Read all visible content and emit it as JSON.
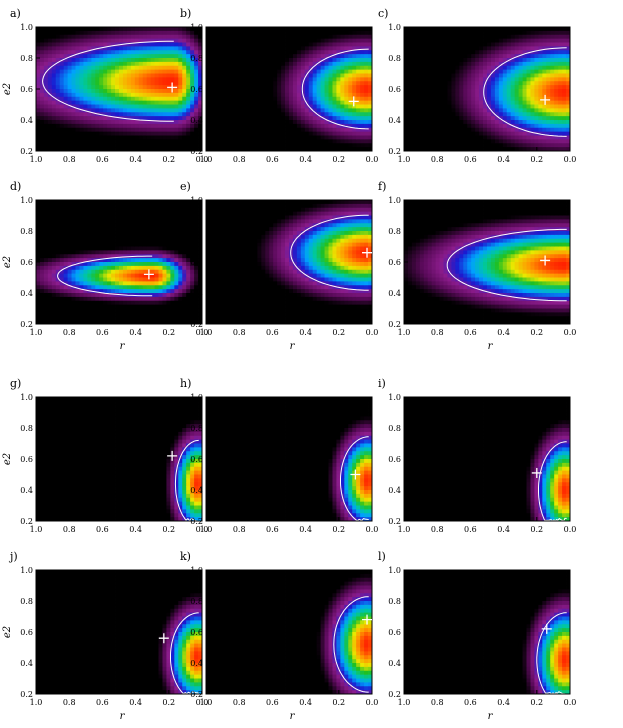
{
  "chart_data": {
    "type": "heatmap",
    "x_ticks": [
      "1.0",
      "0.8",
      "0.6",
      "0.4",
      "0.2",
      "0.0"
    ],
    "y_ticks": [
      "0.2",
      "0.4",
      "0.6",
      "0.8",
      "1.0"
    ],
    "xlim": [
      1.0,
      0.0
    ],
    "ylim": [
      0.2,
      1.0
    ],
    "xlabel": "r",
    "ylabel": "e2",
    "colormap": [
      "#000000",
      "#5a0a5a",
      "#8c1c8c",
      "#1a1ad0",
      "#00a0ff",
      "#00c8a0",
      "#20c020",
      "#e8e800",
      "#ff9800",
      "#ff2000"
    ],
    "contour_color": "#ffffff",
    "marker": "+",
    "panels": [
      {
        "label": "a)",
        "marker": [
          0.18,
          0.61
        ],
        "peak": [
          0.17,
          0.65
        ],
        "spread_left": 0.55,
        "spread_right": 0.12,
        "spread_y": 0.18,
        "tail": [
          0.97,
          0.62
        ]
      },
      {
        "label": "b)",
        "marker": [
          0.11,
          0.52
        ],
        "peak": [
          0.02,
          0.6
        ],
        "spread_left": 0.28,
        "spread_right": 0.05,
        "spread_y": 0.18,
        "tail": [
          0.55,
          0.56
        ]
      },
      {
        "label": "c)",
        "marker": [
          0.15,
          0.53
        ],
        "peak": [
          0.02,
          0.58
        ],
        "spread_left": 0.35,
        "spread_right": 0.05,
        "spread_y": 0.2,
        "tail": [
          0.65,
          0.72
        ]
      },
      {
        "label": "d)",
        "marker": [
          0.32,
          0.52
        ],
        "peak": [
          0.3,
          0.51
        ],
        "spread_left": 0.4,
        "spread_right": 0.14,
        "spread_y": 0.09,
        "tail": [
          0.88,
          0.52
        ]
      },
      {
        "label": "e)",
        "marker": [
          0.03,
          0.66
        ],
        "peak": [
          0.02,
          0.66
        ],
        "spread_left": 0.33,
        "spread_right": 0.04,
        "spread_y": 0.17,
        "tail": [
          0.62,
          0.55
        ]
      },
      {
        "label": "f)",
        "marker": [
          0.15,
          0.61
        ],
        "peak": [
          0.02,
          0.58
        ],
        "spread_left": 0.5,
        "spread_right": 0.05,
        "spread_y": 0.16,
        "tail": [
          0.82,
          0.54
        ]
      },
      {
        "label": "g)",
        "marker": [
          0.18,
          0.62
        ],
        "peak": [
          0.02,
          0.44
        ],
        "spread_left": 0.1,
        "spread_right": 0.04,
        "spread_y": 0.2,
        "tail": [
          0.2,
          0.6
        ]
      },
      {
        "label": "h)",
        "marker": [
          0.1,
          0.5
        ],
        "peak": [
          0.02,
          0.46
        ],
        "spread_left": 0.12,
        "spread_right": 0.04,
        "spread_y": 0.2,
        "tail": [
          0.2,
          0.52
        ]
      },
      {
        "label": "i)",
        "marker": [
          0.2,
          0.51
        ],
        "peak": [
          0.02,
          0.4
        ],
        "spread_left": 0.12,
        "spread_right": 0.04,
        "spread_y": 0.22,
        "tail": [
          0.22,
          0.5
        ]
      },
      {
        "label": "j)",
        "marker": [
          0.23,
          0.56
        ],
        "peak": [
          0.02,
          0.44
        ],
        "spread_left": 0.12,
        "spread_right": 0.04,
        "spread_y": 0.2,
        "tail": [
          0.2,
          0.5
        ]
      },
      {
        "label": "k)",
        "marker": [
          0.03,
          0.68
        ],
        "peak": [
          0.02,
          0.52
        ],
        "spread_left": 0.15,
        "spread_right": 0.04,
        "spread_y": 0.22,
        "tail": [
          0.22,
          0.58
        ]
      },
      {
        "label": "l)",
        "marker": [
          0.14,
          0.62
        ],
        "peak": [
          0.02,
          0.42
        ],
        "spread_left": 0.13,
        "spread_right": 0.04,
        "spread_y": 0.22,
        "tail": [
          0.2,
          0.55
        ]
      }
    ]
  }
}
